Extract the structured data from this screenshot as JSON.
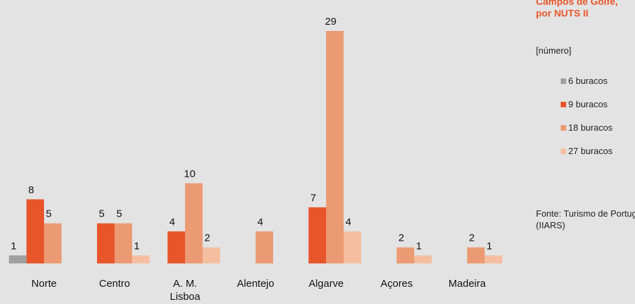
{
  "title": "Campos de Golfe, por NUTS II",
  "unit": "[número]",
  "source": "Fonte: Turismo de Portugal (IIARS)",
  "chart_data": {
    "type": "bar",
    "categories": [
      "Norte",
      "Centro",
      "A. M. Lisboa",
      "Alentejo",
      "Algarve",
      "Açores",
      "Madeira"
    ],
    "series": [
      {
        "name": "6 buracos",
        "color": "#a0a0a0",
        "values": [
          1,
          null,
          null,
          null,
          null,
          null,
          null
        ]
      },
      {
        "name": "9 buracos",
        "color": "#e8552b",
        "values": [
          8,
          5,
          4,
          null,
          7,
          null,
          null
        ]
      },
      {
        "name": "18 buracos",
        "color": "#ec9a73",
        "values": [
          5,
          5,
          10,
          4,
          29,
          2,
          2
        ]
      },
      {
        "name": "27 buracos",
        "color": "#f6bea0",
        "values": [
          null,
          1,
          2,
          null,
          4,
          1,
          1
        ]
      }
    ],
    "ylim": [
      0,
      29
    ],
    "grid": false,
    "legend": "right"
  }
}
